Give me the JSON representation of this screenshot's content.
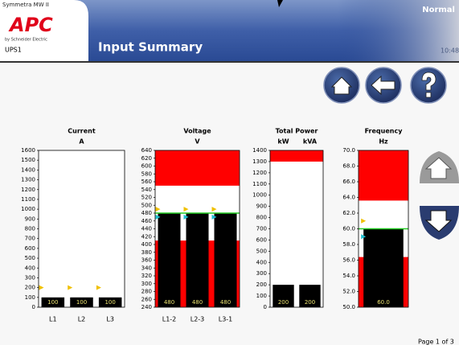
{
  "header": {
    "product": "Symmetra MW II",
    "logo": "APC",
    "brand": "by Schneider Electric",
    "device": "UPS1",
    "title": "Input Summary",
    "status": "Normal",
    "time": "10:48"
  },
  "footer": {
    "page": "Page 1 of 3"
  },
  "chart_data": [
    {
      "type": "bar",
      "title": "Current",
      "subtitle": "A",
      "categories": [
        "L1",
        "L2",
        "L3"
      ],
      "values": [
        100,
        100,
        100
      ],
      "color": "#000000",
      "ylim": [
        0,
        1600
      ],
      "yticks": [
        0,
        100,
        200,
        300,
        400,
        500,
        600,
        700,
        800,
        900,
        1000,
        1100,
        1200,
        1300,
        1400,
        1500,
        1600
      ],
      "upper_markers": [
        200,
        200,
        200
      ],
      "upper_marker_color": "#f0c000"
    },
    {
      "type": "bar",
      "title": "Voltage",
      "subtitle": "V",
      "categories": [
        "L1-2",
        "L2-3",
        "L3-1"
      ],
      "values": [
        480,
        480,
        480
      ],
      "color": "#000000",
      "ylim": [
        240,
        640
      ],
      "yticks": [
        240,
        260,
        280,
        300,
        320,
        340,
        360,
        380,
        400,
        420,
        440,
        460,
        480,
        500,
        520,
        540,
        560,
        580,
        600,
        620,
        640
      ],
      "bands": [
        {
          "from": 550,
          "to": 640,
          "color": "#ff0000"
        },
        {
          "from": 240,
          "to": 410,
          "color": "#ff0000"
        }
      ],
      "nominal": 480,
      "nominal_color": "#22cc22",
      "upper_markers": [
        490,
        490,
        490
      ],
      "upper_marker_color": "#f0c000",
      "lower_markers": [
        470,
        470,
        470
      ],
      "lower_marker_color": "#20c0d0"
    },
    {
      "type": "bar",
      "title": "Total Power",
      "header_categories": true,
      "categories": [
        "kW",
        "kVA"
      ],
      "values": [
        200,
        200
      ],
      "color": "#000000",
      "ylim": [
        0,
        1400
      ],
      "yticks": [
        0,
        100,
        200,
        300,
        400,
        500,
        600,
        700,
        800,
        900,
        1000,
        1100,
        1200,
        1300,
        1400
      ],
      "bands": [
        {
          "from": 1300,
          "to": 1400,
          "color": "#ff0000"
        }
      ]
    },
    {
      "type": "bar",
      "title": "Frequency",
      "subtitle": "Hz",
      "categories": [
        null
      ],
      "values": [
        60.0
      ],
      "value_labels": [
        "60.0"
      ],
      "color": "#000000",
      "ylim": [
        50.0,
        70.0
      ],
      "yticks": [
        {
          "value": 50.0,
          "label": "50.0"
        },
        {
          "value": 52.0,
          "label": "52.0"
        },
        {
          "value": 54.0,
          "label": "54.0"
        },
        {
          "value": 56.0,
          "label": "56.0"
        },
        {
          "value": 58.0,
          "label": "58.0"
        },
        {
          "value": 60.0,
          "label": "60.0"
        },
        {
          "value": 62.0,
          "label": "62.0"
        },
        {
          "value": 64.0,
          "label": "64.0"
        },
        {
          "value": 66.0,
          "label": "66.0"
        },
        {
          "value": 68.0,
          "label": "68.0"
        },
        {
          "value": 70.0,
          "label": "70.0"
        }
      ],
      "bands": [
        {
          "from": 63.6,
          "to": 70.0,
          "color": "#ff0000"
        },
        {
          "from": 50.0,
          "to": 56.4,
          "color": "#ff0000"
        }
      ],
      "nominal": 60.0,
      "nominal_color": "#22cc22",
      "upper_markers": [
        61.0
      ],
      "upper_marker_color": "#f0c000",
      "lower_markers": [
        59.0
      ],
      "lower_marker_color": "#20c0d0"
    }
  ]
}
